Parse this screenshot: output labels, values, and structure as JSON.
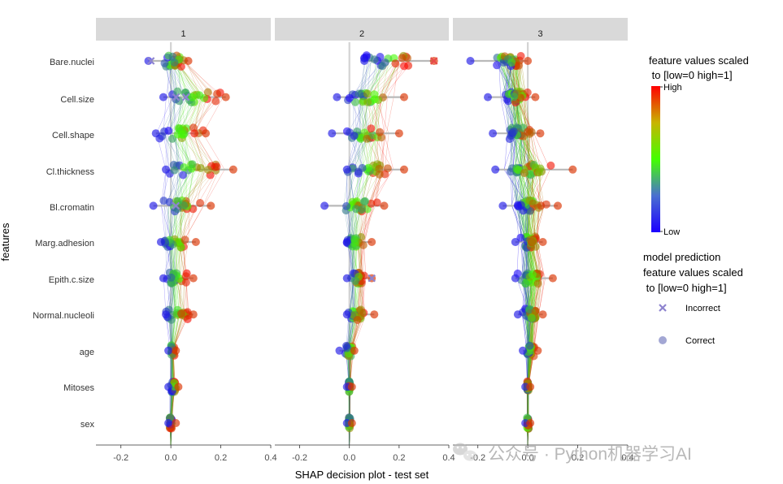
{
  "chart_data": {
    "type": "scatter",
    "subtype": "shap-decision-plot-faceted",
    "xlabel": "SHAP decision plot - test set",
    "ylabel": "features",
    "xlim": [
      -0.3,
      0.4
    ],
    "xticks": [
      -0.2,
      0.0,
      0.2,
      0.4
    ],
    "xtick_labels": [
      "-0.2",
      "0.0",
      "0.2",
      "0.4"
    ],
    "panels": [
      "1",
      "2",
      "3"
    ],
    "features": [
      "Bare.nuclei",
      "Cell.size",
      "Cell.shape",
      "Cl.thickness",
      "Bl.cromatin",
      "Marg.adhesion",
      "Epith.c.size",
      "Normal.nucleoli",
      "age",
      "Mitoses",
      "sex"
    ],
    "legend": {
      "color_title_line1": "feature values scaled",
      "color_title_line2": " to [low=0 high=1]",
      "color_high": "High",
      "color_low": "Low",
      "shape_title_line1": "model prediction",
      "shape_title_line2": "feature values scaled",
      "shape_title_line3": " to [low=0 high=1]",
      "shape_incorrect": "Incorrect",
      "shape_correct": "Correct"
    },
    "summary": [
      {
        "panel": "1",
        "feature": "Bare.nuclei",
        "x_min": -0.09,
        "x_max": 0.07,
        "low_value_x": -0.02,
        "high_value_x": 0.05
      },
      {
        "panel": "1",
        "feature": "Cell.size",
        "x_min": -0.03,
        "x_max": 0.22,
        "low_value_x": 0.0,
        "high_value_x": 0.18
      },
      {
        "panel": "1",
        "feature": "Cell.shape",
        "x_min": -0.06,
        "x_max": 0.14,
        "low_value_x": -0.03,
        "high_value_x": 0.11
      },
      {
        "panel": "1",
        "feature": "Cl.thickness",
        "x_min": -0.02,
        "x_max": 0.25,
        "low_value_x": 0.0,
        "high_value_x": 0.19
      },
      {
        "panel": "1",
        "feature": "Bl.cromatin",
        "x_min": -0.07,
        "x_max": 0.16,
        "low_value_x": -0.02,
        "high_value_x": 0.1
      },
      {
        "panel": "1",
        "feature": "Marg.adhesion",
        "x_min": -0.04,
        "x_max": 0.1,
        "low_value_x": -0.02,
        "high_value_x": 0.06
      },
      {
        "panel": "1",
        "feature": "Epith.c.size",
        "x_min": -0.03,
        "x_max": 0.09,
        "low_value_x": -0.01,
        "high_value_x": 0.05
      },
      {
        "panel": "1",
        "feature": "Normal.nucleoli",
        "x_min": -0.02,
        "x_max": 0.09,
        "low_value_x": -0.01,
        "high_value_x": 0.06
      },
      {
        "panel": "1",
        "feature": "age",
        "x_min": -0.01,
        "x_max": 0.02,
        "low_value_x": 0.0,
        "high_value_x": 0.01
      },
      {
        "panel": "1",
        "feature": "Mitoses",
        "x_min": -0.01,
        "x_max": 0.03,
        "low_value_x": 0.0,
        "high_value_x": 0.02
      },
      {
        "panel": "1",
        "feature": "sex",
        "x_min": -0.01,
        "x_max": 0.02,
        "low_value_x": 0.0,
        "high_value_x": 0.0
      },
      {
        "panel": "2",
        "feature": "Bare.nuclei",
        "x_min": 0.06,
        "x_max": 0.34,
        "low_value_x": 0.08,
        "high_value_x": 0.22
      },
      {
        "panel": "2",
        "feature": "Cell.size",
        "x_min": -0.05,
        "x_max": 0.22,
        "low_value_x": 0.02,
        "high_value_x": 0.14
      },
      {
        "panel": "2",
        "feature": "Cell.shape",
        "x_min": -0.07,
        "x_max": 0.2,
        "low_value_x": 0.02,
        "high_value_x": 0.12
      },
      {
        "panel": "2",
        "feature": "Cl.thickness",
        "x_min": -0.01,
        "x_max": 0.22,
        "low_value_x": 0.0,
        "high_value_x": 0.14
      },
      {
        "panel": "2",
        "feature": "Bl.cromatin",
        "x_min": -0.1,
        "x_max": 0.14,
        "low_value_x": 0.0,
        "high_value_x": 0.08
      },
      {
        "panel": "2",
        "feature": "Marg.adhesion",
        "x_min": -0.01,
        "x_max": 0.09,
        "low_value_x": 0.0,
        "high_value_x": 0.05
      },
      {
        "panel": "2",
        "feature": "Epith.c.size",
        "x_min": -0.01,
        "x_max": 0.09,
        "low_value_x": 0.01,
        "high_value_x": 0.05
      },
      {
        "panel": "2",
        "feature": "Normal.nucleoli",
        "x_min": -0.01,
        "x_max": 0.1,
        "low_value_x": 0.0,
        "high_value_x": 0.05
      },
      {
        "panel": "2",
        "feature": "age",
        "x_min": -0.04,
        "x_max": 0.02,
        "low_value_x": -0.01,
        "high_value_x": 0.01
      },
      {
        "panel": "2",
        "feature": "Mitoses",
        "x_min": -0.01,
        "x_max": 0.01,
        "low_value_x": 0.0,
        "high_value_x": 0.0
      },
      {
        "panel": "2",
        "feature": "sex",
        "x_min": -0.01,
        "x_max": 0.01,
        "low_value_x": 0.0,
        "high_value_x": 0.0
      },
      {
        "panel": "3",
        "feature": "Bare.nuclei",
        "x_min": -0.23,
        "x_max": 0.0,
        "low_value_x": -0.1,
        "high_value_x": -0.05
      },
      {
        "panel": "3",
        "feature": "Cell.size",
        "x_min": -0.16,
        "x_max": 0.03,
        "low_value_x": -0.08,
        "high_value_x": -0.02
      },
      {
        "panel": "3",
        "feature": "Cell.shape",
        "x_min": -0.14,
        "x_max": 0.05,
        "low_value_x": -0.06,
        "high_value_x": 0.0
      },
      {
        "panel": "3",
        "feature": "Cl.thickness",
        "x_min": -0.13,
        "x_max": 0.18,
        "low_value_x": -0.05,
        "high_value_x": 0.05
      },
      {
        "panel": "3",
        "feature": "Bl.cromatin",
        "x_min": -0.1,
        "x_max": 0.12,
        "low_value_x": -0.04,
        "high_value_x": 0.05
      },
      {
        "panel": "3",
        "feature": "Marg.adhesion",
        "x_min": -0.05,
        "x_max": 0.06,
        "low_value_x": -0.02,
        "high_value_x": 0.03
      },
      {
        "panel": "3",
        "feature": "Epith.c.size",
        "x_min": -0.05,
        "x_max": 0.1,
        "low_value_x": -0.02,
        "high_value_x": 0.05
      },
      {
        "panel": "3",
        "feature": "Normal.nucleoli",
        "x_min": -0.04,
        "x_max": 0.06,
        "low_value_x": -0.01,
        "high_value_x": 0.03
      },
      {
        "panel": "3",
        "feature": "age",
        "x_min": -0.02,
        "x_max": 0.04,
        "low_value_x": 0.0,
        "high_value_x": 0.02
      },
      {
        "panel": "3",
        "feature": "Mitoses",
        "x_min": -0.01,
        "x_max": 0.01,
        "low_value_x": 0.0,
        "high_value_x": 0.0
      },
      {
        "panel": "3",
        "feature": "sex",
        "x_min": -0.01,
        "x_max": 0.01,
        "low_value_x": 0.0,
        "high_value_x": 0.0
      }
    ],
    "incorrect_points": [
      {
        "panel": "1",
        "feature": "Bare.nuclei",
        "x": -0.08
      },
      {
        "panel": "1",
        "feature": "Cell.size",
        "x": 0.06
      },
      {
        "panel": "1",
        "feature": "Cell.size",
        "x": 0.02
      },
      {
        "panel": "1",
        "feature": "Bl.cromatin",
        "x": 0.02
      },
      {
        "panel": "2",
        "feature": "Bare.nuclei",
        "x": 0.34
      },
      {
        "panel": "2",
        "feature": "Epith.c.size",
        "x": 0.09
      }
    ]
  },
  "colors": {
    "low": "#1c00ff",
    "mid": "#44ff00",
    "high": "#ff0000",
    "incorrect_marker": "#8e84cf",
    "correct_marker": "#a3a7d4",
    "strip_bg": "#d9d9d9",
    "zero_line": "#d3d3d3"
  },
  "watermark": {
    "text": "公众号 · Python机器学习AI",
    "icon": "wechat-logo-icon"
  }
}
